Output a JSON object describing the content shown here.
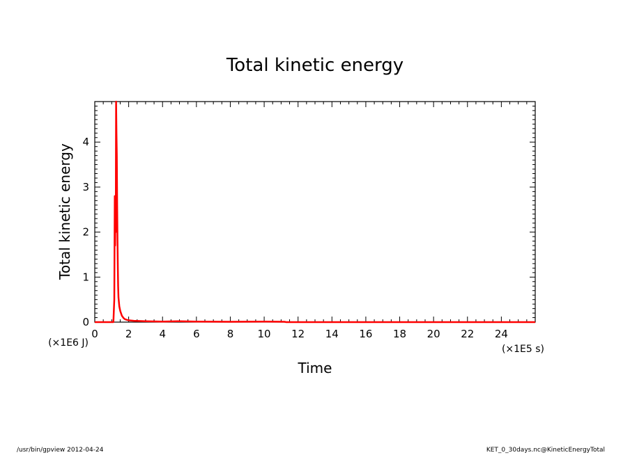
{
  "chart_data": {
    "type": "line",
    "title": "Total kinetic energy",
    "xlabel": "Time",
    "ylabel": "Total kinetic energy",
    "x_unit": "(×1E5 s)",
    "y_unit": "(×1E6 J)",
    "xlim": [
      0,
      26
    ],
    "ylim": [
      0,
      4.9
    ],
    "xticks": [
      0,
      2,
      4,
      6,
      8,
      10,
      12,
      14,
      16,
      18,
      20,
      22,
      24
    ],
    "xtick_labels": [
      "0",
      "2",
      "4",
      "6",
      "8",
      "10",
      "12",
      "14",
      "16",
      "18",
      "20",
      "22",
      "24"
    ],
    "yticks": [
      0,
      1,
      2,
      3,
      4
    ],
    "ytick_labels": [
      "0",
      "1",
      "2",
      "3",
      "4"
    ],
    "grid": false,
    "line_color": "#ff0000",
    "series": [
      {
        "x": [
          0,
          1.1,
          1.15,
          1.18,
          1.2,
          1.22,
          1.24,
          1.26,
          1.28,
          1.3,
          1.32,
          1.34,
          1.36,
          1.38,
          1.4,
          1.45,
          1.5,
          1.6,
          1.7,
          1.8,
          2.0,
          2.3,
          2.6,
          3.0,
          3.5,
          4.0,
          5.0,
          6.0,
          8.0,
          10.0,
          11.2,
          11.3,
          26
        ],
        "y": [
          0,
          0,
          0.5,
          2.8,
          1.7,
          2.7,
          2.0,
          4.9,
          4.2,
          3.7,
          2.6,
          1.8,
          1.2,
          0.8,
          0.55,
          0.35,
          0.25,
          0.14,
          0.09,
          0.06,
          0.04,
          0.03,
          0.025,
          0.02,
          0.015,
          0.012,
          0.02,
          0.012,
          0.008,
          0.012,
          0.008,
          0,
          0
        ]
      }
    ]
  },
  "footer": {
    "left": "/usr/bin/gpview  2012-04-24",
    "right": "KET_0_30days.nc@KineticEnergyTotal"
  }
}
